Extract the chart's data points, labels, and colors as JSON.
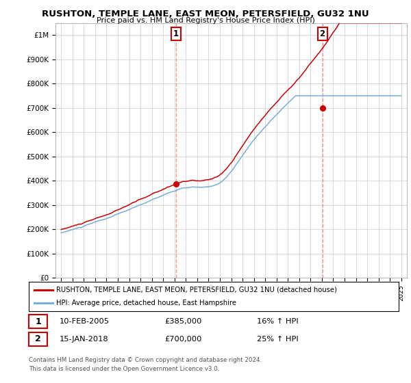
{
  "title": "RUSHTON, TEMPLE LANE, EAST MEON, PETERSFIELD, GU32 1NU",
  "subtitle": "Price paid vs. HM Land Registry's House Price Index (HPI)",
  "ylim": [
    0,
    1050000
  ],
  "yticks": [
    0,
    100000,
    200000,
    300000,
    400000,
    500000,
    600000,
    700000,
    800000,
    900000,
    1000000
  ],
  "yticklabels": [
    "£0",
    "£100K",
    "£200K",
    "£300K",
    "£400K",
    "£500K",
    "£600K",
    "£700K",
    "£800K",
    "£900K",
    "£1M"
  ],
  "background_color": "#ffffff",
  "grid_color": "#cccccc",
  "sale1_x": 2005.11,
  "sale1_y": 385000,
  "sale1_label": "1",
  "sale1_date": "10-FEB-2005",
  "sale1_price": "£385,000",
  "sale1_hpi": "16% ↑ HPI",
  "sale2_x": 2018.04,
  "sale2_y": 700000,
  "sale2_label": "2",
  "sale2_date": "15-JAN-2018",
  "sale2_price": "£700,000",
  "sale2_hpi": "25% ↑ HPI",
  "vline_color": "#ff8888",
  "property_color": "#cc0000",
  "hpi_color": "#7aaddb",
  "legend_property": "RUSHTON, TEMPLE LANE, EAST MEON, PETERSFIELD, GU32 1NU (detached house)",
  "legend_hpi": "HPI: Average price, detached house, East Hampshire",
  "footnote1": "Contains HM Land Registry data © Crown copyright and database right 2024.",
  "footnote2": "This data is licensed under the Open Government Licence v3.0.",
  "xlim_start": 1994.5,
  "xlim_end": 2025.5
}
